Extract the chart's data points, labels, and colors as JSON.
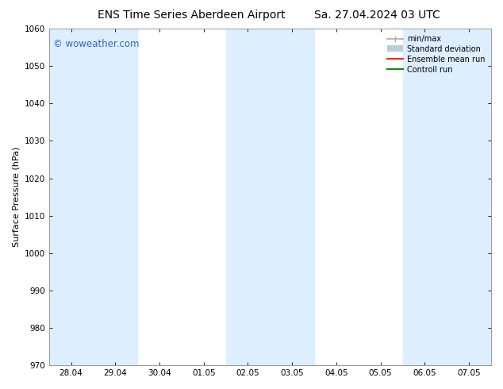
{
  "title_left": "ENS Time Series Aberdeen Airport",
  "title_right": "Sa. 27.04.2024 03 UTC",
  "ylabel": "Surface Pressure (hPa)",
  "ylim": [
    970,
    1060
  ],
  "yticks": [
    970,
    980,
    990,
    1000,
    1010,
    1020,
    1030,
    1040,
    1050,
    1060
  ],
  "xtick_labels": [
    "28.04",
    "29.04",
    "30.04",
    "01.05",
    "02.05",
    "03.05",
    "04.05",
    "05.05",
    "06.05",
    "07.05"
  ],
  "watermark": "© woweather.com",
  "watermark_color": "#3366cc",
  "background_color": "#ffffff",
  "shaded_band_indices": [
    0,
    1,
    4,
    5,
    8,
    9
  ],
  "shaded_color": "#ddeeff",
  "legend_entries": [
    {
      "label": "min/max"
    },
    {
      "label": "Standard deviation"
    },
    {
      "label": "Ensemble mean run"
    },
    {
      "label": "Controll run"
    }
  ],
  "legend_line_colors": [
    "#aaaaaa",
    "#bbccdd",
    "#ff2200",
    "#009900"
  ],
  "title_fontsize": 10,
  "axis_label_fontsize": 8,
  "tick_fontsize": 7.5
}
